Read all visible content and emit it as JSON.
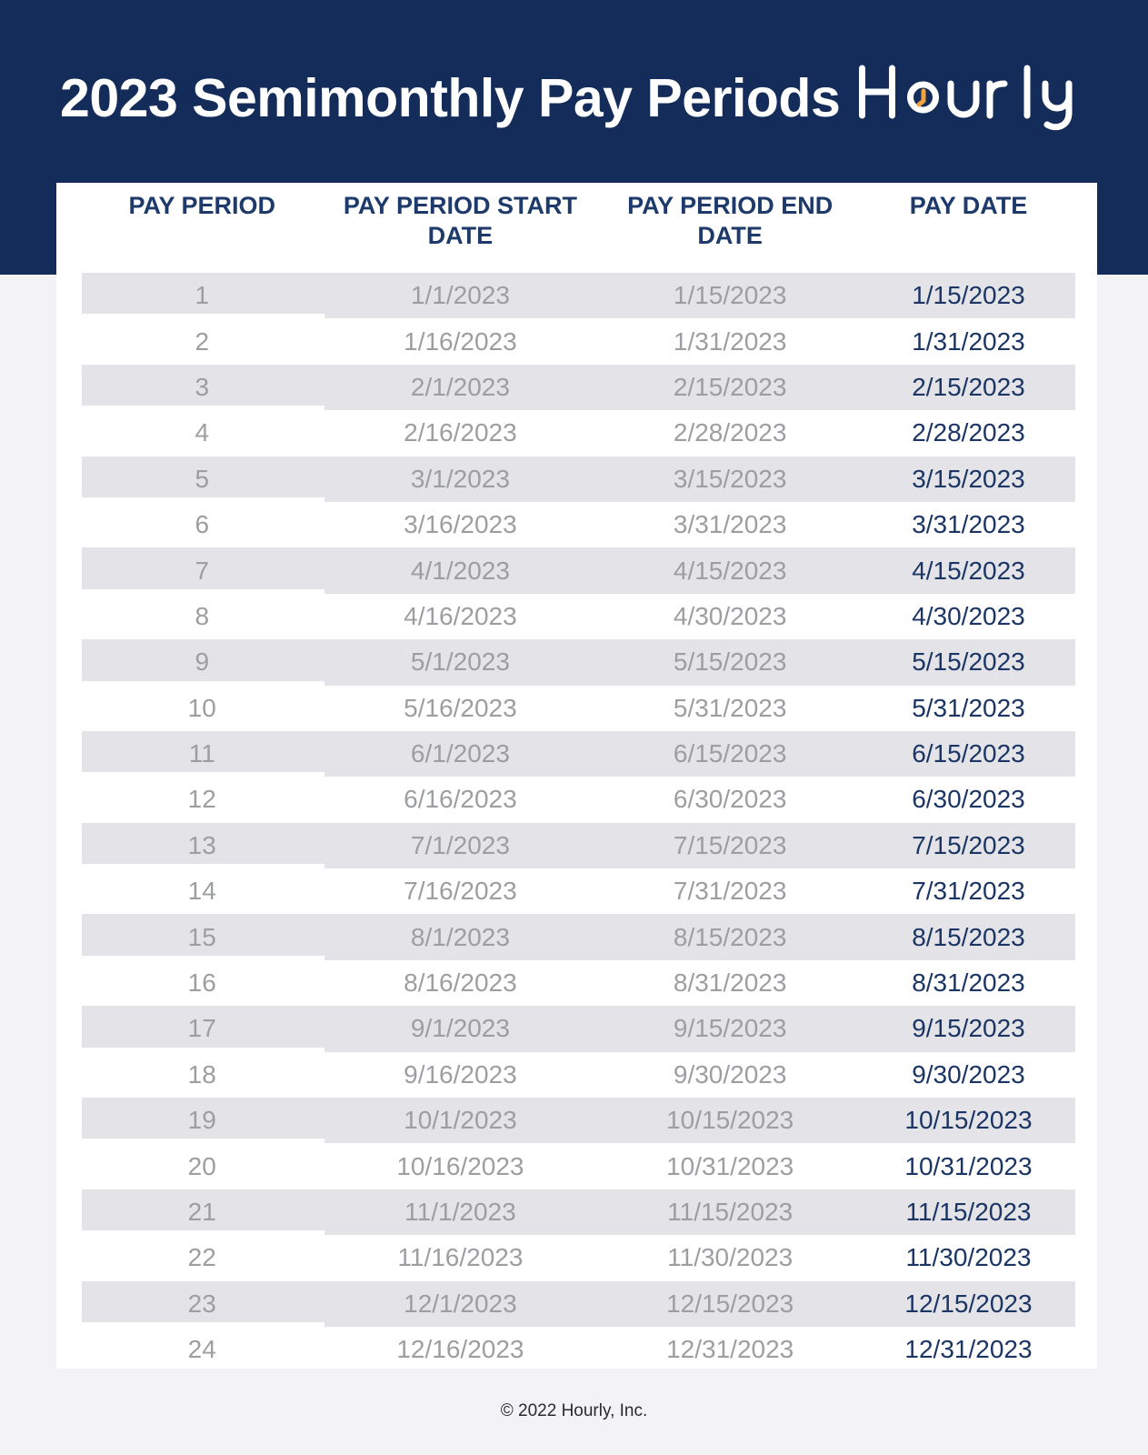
{
  "header": {
    "title": "2023 Semimonthly Pay Periods",
    "logo_text": "Hourly"
  },
  "table": {
    "columns": [
      "PAY PERIOD",
      "PAY PERIOD START DATE",
      "PAY PERIOD END DATE",
      "PAY DATE"
    ],
    "rows": [
      {
        "period": "1",
        "start_date": "1/1/2023",
        "end_date": "1/15/2023",
        "pay_date": "1/15/2023"
      },
      {
        "period": "2",
        "start_date": "1/16/2023",
        "end_date": "1/31/2023",
        "pay_date": "1/31/2023"
      },
      {
        "period": "3",
        "start_date": "2/1/2023",
        "end_date": "2/15/2023",
        "pay_date": "2/15/2023"
      },
      {
        "period": "4",
        "start_date": "2/16/2023",
        "end_date": "2/28/2023",
        "pay_date": "2/28/2023"
      },
      {
        "period": "5",
        "start_date": "3/1/2023",
        "end_date": "3/15/2023",
        "pay_date": "3/15/2023"
      },
      {
        "period": "6",
        "start_date": "3/16/2023",
        "end_date": "3/31/2023",
        "pay_date": "3/31/2023"
      },
      {
        "period": "7",
        "start_date": "4/1/2023",
        "end_date": "4/15/2023",
        "pay_date": "4/15/2023"
      },
      {
        "period": "8",
        "start_date": "4/16/2023",
        "end_date": "4/30/2023",
        "pay_date": "4/30/2023"
      },
      {
        "period": "9",
        "start_date": "5/1/2023",
        "end_date": "5/15/2023",
        "pay_date": "5/15/2023"
      },
      {
        "period": "10",
        "start_date": "5/16/2023",
        "end_date": "5/31/2023",
        "pay_date": "5/31/2023"
      },
      {
        "period": "11",
        "start_date": "6/1/2023",
        "end_date": "6/15/2023",
        "pay_date": "6/15/2023"
      },
      {
        "period": "12",
        "start_date": "6/16/2023",
        "end_date": "6/30/2023",
        "pay_date": "6/30/2023"
      },
      {
        "period": "13",
        "start_date": "7/1/2023",
        "end_date": "7/15/2023",
        "pay_date": "7/15/2023"
      },
      {
        "period": "14",
        "start_date": "7/16/2023",
        "end_date": "7/31/2023",
        "pay_date": "7/31/2023"
      },
      {
        "period": "15",
        "start_date": "8/1/2023",
        "end_date": "8/15/2023",
        "pay_date": "8/15/2023"
      },
      {
        "period": "16",
        "start_date": "8/16/2023",
        "end_date": "8/31/2023",
        "pay_date": "8/31/2023"
      },
      {
        "period": "17",
        "start_date": "9/1/2023",
        "end_date": "9/15/2023",
        "pay_date": "9/15/2023"
      },
      {
        "period": "18",
        "start_date": "9/16/2023",
        "end_date": "9/30/2023",
        "pay_date": "9/30/2023"
      },
      {
        "period": "19",
        "start_date": "10/1/2023",
        "end_date": "10/15/2023",
        "pay_date": "10/15/2023"
      },
      {
        "period": "20",
        "start_date": "10/16/2023",
        "end_date": "10/31/2023",
        "pay_date": "10/31/2023"
      },
      {
        "period": "21",
        "start_date": "11/1/2023",
        "end_date": "11/15/2023",
        "pay_date": "11/15/2023"
      },
      {
        "period": "22",
        "start_date": "11/16/2023",
        "end_date": "11/30/2023",
        "pay_date": "11/30/2023"
      },
      {
        "period": "23",
        "start_date": "12/1/2023",
        "end_date": "12/15/2023",
        "pay_date": "12/15/2023"
      },
      {
        "period": "24",
        "start_date": "12/16/2023",
        "end_date": "12/31/2023",
        "pay_date": "12/31/2023"
      }
    ]
  },
  "footer": {
    "copyright": "© 2022 Hourly, Inc."
  },
  "colors": {
    "navy_bg": "#132c5a",
    "title_text": "#ffffff",
    "header_text": "#1d3a6b",
    "pay_date_text": "#1b3564",
    "muted_text": "#9d9ea2",
    "stripe": "#e4e4e8",
    "card_bg": "#ffffff",
    "page_bg": "#f3f3f5",
    "accent_orange": "#f2a33c"
  }
}
